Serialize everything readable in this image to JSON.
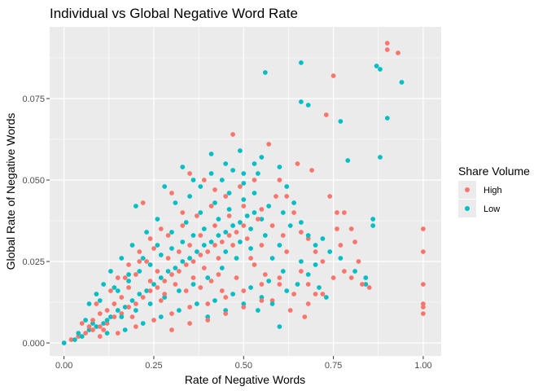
{
  "chart_data": {
    "type": "scatter",
    "title": "Individual vs Global Negative Word Rate",
    "xlabel": "Rate of Negative Words",
    "ylabel": "Global Rate of Negative Words",
    "xlim": [
      -0.04,
      1.05
    ],
    "ylim": [
      -0.004,
      0.097
    ],
    "x_ticks": [
      {
        "value": 0.0,
        "label": "0.00"
      },
      {
        "value": 0.25,
        "label": "0.25"
      },
      {
        "value": 0.5,
        "label": "0.50"
      },
      {
        "value": 0.75,
        "label": "0.75"
      },
      {
        "value": 1.0,
        "label": "1.00"
      }
    ],
    "y_ticks": [
      {
        "value": 0.0,
        "label": "0.000"
      },
      {
        "value": 0.025,
        "label": "0.025"
      },
      {
        "value": 0.05,
        "label": "0.050"
      },
      {
        "value": 0.075,
        "label": "0.075"
      }
    ],
    "grid": true,
    "panel_background": "#ebebeb",
    "legend": {
      "title": "Share Volume",
      "placement": "right"
    },
    "series": [
      {
        "name": "High",
        "color": "#F8766D",
        "points": [
          [
            0.0,
            0.0
          ],
          [
            0.02,
            0.001
          ],
          [
            0.04,
            0.002
          ],
          [
            0.06,
            0.003
          ],
          [
            0.08,
            0.004
          ],
          [
            0.1,
            0.005
          ],
          [
            0.12,
            0.006
          ],
          [
            0.14,
            0.008
          ],
          [
            0.16,
            0.009
          ],
          [
            0.18,
            0.011
          ],
          [
            0.2,
            0.012
          ],
          [
            0.22,
            0.014
          ],
          [
            0.24,
            0.016
          ],
          [
            0.26,
            0.017
          ],
          [
            0.28,
            0.019
          ],
          [
            0.3,
            0.021
          ],
          [
            0.32,
            0.022
          ],
          [
            0.34,
            0.024
          ],
          [
            0.36,
            0.025
          ],
          [
            0.38,
            0.027
          ],
          [
            0.4,
            0.028
          ],
          [
            0.42,
            0.03
          ],
          [
            0.44,
            0.031
          ],
          [
            0.46,
            0.033
          ],
          [
            0.48,
            0.034
          ],
          [
            0.5,
            0.036
          ],
          [
            0.05,
            0.006
          ],
          [
            0.09,
            0.012
          ],
          [
            0.13,
            0.016
          ],
          [
            0.17,
            0.02
          ],
          [
            0.21,
            0.025
          ],
          [
            0.25,
            0.029
          ],
          [
            0.29,
            0.033
          ],
          [
            0.33,
            0.036
          ],
          [
            0.37,
            0.039
          ],
          [
            0.41,
            0.042
          ],
          [
            0.45,
            0.045
          ],
          [
            0.49,
            0.048
          ],
          [
            0.53,
            0.05
          ],
          [
            0.1,
            0.002
          ],
          [
            0.15,
            0.003
          ],
          [
            0.2,
            0.005
          ],
          [
            0.25,
            0.007
          ],
          [
            0.3,
            0.009
          ],
          [
            0.35,
            0.011
          ],
          [
            0.4,
            0.012
          ],
          [
            0.45,
            0.014
          ],
          [
            0.5,
            0.016
          ],
          [
            0.55,
            0.018
          ],
          [
            0.6,
            0.02
          ],
          [
            0.22,
            0.043
          ],
          [
            0.3,
            0.046
          ],
          [
            0.35,
            0.052
          ],
          [
            0.47,
            0.064
          ],
          [
            0.57,
            0.061
          ],
          [
            0.6,
            0.05
          ],
          [
            0.62,
            0.045
          ],
          [
            0.64,
            0.04
          ],
          [
            0.66,
            0.034
          ],
          [
            0.68,
            0.032
          ],
          [
            0.7,
            0.028
          ],
          [
            0.72,
            0.025
          ],
          [
            0.66,
            0.022
          ],
          [
            0.68,
            0.018
          ],
          [
            0.7,
            0.015
          ],
          [
            0.63,
            0.01
          ],
          [
            0.67,
            0.008
          ],
          [
            0.58,
            0.013
          ],
          [
            0.55,
            0.03
          ],
          [
            0.52,
            0.026
          ],
          [
            0.43,
            0.021
          ],
          [
            0.38,
            0.017
          ],
          [
            0.27,
            0.013
          ],
          [
            0.19,
            0.008
          ],
          [
            0.11,
            0.004
          ],
          [
            0.65,
            0.055
          ],
          [
            0.69,
            0.053
          ],
          [
            0.73,
            0.07
          ],
          [
            0.75,
            0.082
          ],
          [
            0.76,
            0.035
          ],
          [
            0.77,
            0.03
          ],
          [
            0.78,
            0.022
          ],
          [
            0.8,
            0.02
          ],
          [
            0.81,
            0.031
          ],
          [
            0.8,
            0.035
          ],
          [
            0.76,
            0.04
          ],
          [
            0.74,
            0.045
          ],
          [
            0.78,
            0.04
          ],
          [
            0.82,
            0.025
          ],
          [
            0.85,
            0.017
          ],
          [
            0.9,
            0.092
          ],
          [
            0.9,
            0.09
          ],
          [
            0.93,
            0.089
          ],
          [
            1.0,
            0.035
          ],
          [
            1.0,
            0.028
          ],
          [
            1.0,
            0.018
          ],
          [
            1.0,
            0.012
          ],
          [
            1.0,
            0.011
          ],
          [
            1.0,
            0.009
          ],
          [
            0.83,
            0.018
          ],
          [
            0.75,
            0.02
          ],
          [
            0.72,
            0.015
          ],
          [
            0.68,
            0.012
          ],
          [
            0.64,
            0.015
          ],
          [
            0.6,
            0.018
          ],
          [
            0.56,
            0.021
          ],
          [
            0.53,
            0.024
          ],
          [
            0.48,
            0.02
          ],
          [
            0.44,
            0.016
          ],
          [
            0.41,
            0.019
          ],
          [
            0.39,
            0.023
          ],
          [
            0.36,
            0.02
          ],
          [
            0.34,
            0.016
          ],
          [
            0.31,
            0.018
          ],
          [
            0.28,
            0.015
          ],
          [
            0.26,
            0.022
          ],
          [
            0.24,
            0.019
          ],
          [
            0.23,
            0.025
          ],
          [
            0.2,
            0.021
          ],
          [
            0.18,
            0.017
          ],
          [
            0.16,
            0.014
          ],
          [
            0.14,
            0.012
          ],
          [
            0.12,
            0.01
          ],
          [
            0.1,
            0.009
          ],
          [
            0.08,
            0.007
          ],
          [
            0.07,
            0.005
          ],
          [
            0.5,
            0.042
          ],
          [
            0.54,
            0.038
          ],
          [
            0.58,
            0.036
          ],
          [
            0.61,
            0.033
          ],
          [
            0.46,
            0.039
          ],
          [
            0.42,
            0.036
          ],
          [
            0.38,
            0.033
          ],
          [
            0.35,
            0.03
          ],
          [
            0.32,
            0.028
          ],
          [
            0.29,
            0.026
          ],
          [
            0.43,
            0.026
          ],
          [
            0.47,
            0.03
          ],
          [
            0.51,
            0.032
          ],
          [
            0.55,
            0.041
          ],
          [
            0.59,
            0.045
          ],
          [
            0.62,
            0.028
          ],
          [
            0.4,
            0.007
          ],
          [
            0.45,
            0.009
          ],
          [
            0.5,
            0.011
          ],
          [
            0.55,
            0.013
          ],
          [
            0.35,
            0.006
          ],
          [
            0.3,
            0.004
          ],
          [
            0.42,
            0.047
          ],
          [
            0.39,
            0.05
          ],
          [
            0.33,
            0.04
          ],
          [
            0.27,
            0.035
          ],
          [
            0.24,
            0.032
          ],
          [
            0.21,
            0.028
          ],
          [
            0.18,
            0.024
          ],
          [
            0.15,
            0.02
          ]
        ]
      },
      {
        "name": "Low",
        "color": "#00BFC4",
        "points": [
          [
            0.0,
            0.0
          ],
          [
            0.03,
            0.001
          ],
          [
            0.05,
            0.002
          ],
          [
            0.07,
            0.004
          ],
          [
            0.09,
            0.005
          ],
          [
            0.11,
            0.006
          ],
          [
            0.13,
            0.008
          ],
          [
            0.15,
            0.01
          ],
          [
            0.17,
            0.011
          ],
          [
            0.19,
            0.013
          ],
          [
            0.21,
            0.015
          ],
          [
            0.23,
            0.016
          ],
          [
            0.25,
            0.018
          ],
          [
            0.27,
            0.02
          ],
          [
            0.29,
            0.022
          ],
          [
            0.31,
            0.023
          ],
          [
            0.33,
            0.025
          ],
          [
            0.35,
            0.026
          ],
          [
            0.37,
            0.028
          ],
          [
            0.39,
            0.03
          ],
          [
            0.41,
            0.031
          ],
          [
            0.43,
            0.033
          ],
          [
            0.45,
            0.034
          ],
          [
            0.47,
            0.036
          ],
          [
            0.49,
            0.037
          ],
          [
            0.51,
            0.039
          ],
          [
            0.53,
            0.04
          ],
          [
            0.06,
            0.007
          ],
          [
            0.1,
            0.013
          ],
          [
            0.14,
            0.017
          ],
          [
            0.18,
            0.021
          ],
          [
            0.22,
            0.026
          ],
          [
            0.26,
            0.03
          ],
          [
            0.3,
            0.034
          ],
          [
            0.34,
            0.037
          ],
          [
            0.38,
            0.04
          ],
          [
            0.42,
            0.043
          ],
          [
            0.46,
            0.046
          ],
          [
            0.5,
            0.049
          ],
          [
            0.54,
            0.052
          ],
          [
            0.12,
            0.003
          ],
          [
            0.17,
            0.004
          ],
          [
            0.22,
            0.006
          ],
          [
            0.27,
            0.008
          ],
          [
            0.32,
            0.01
          ],
          [
            0.37,
            0.012
          ],
          [
            0.42,
            0.013
          ],
          [
            0.47,
            0.015
          ],
          [
            0.52,
            0.017
          ],
          [
            0.57,
            0.019
          ],
          [
            0.2,
            0.042
          ],
          [
            0.28,
            0.048
          ],
          [
            0.33,
            0.054
          ],
          [
            0.41,
            0.058
          ],
          [
            0.45,
            0.055
          ],
          [
            0.49,
            0.059
          ],
          [
            0.55,
            0.057
          ],
          [
            0.6,
            0.054
          ],
          [
            0.62,
            0.048
          ],
          [
            0.64,
            0.043
          ],
          [
            0.66,
            0.037
          ],
          [
            0.68,
            0.033
          ],
          [
            0.7,
            0.03
          ],
          [
            0.56,
            0.083
          ],
          [
            0.66,
            0.086
          ],
          [
            0.66,
            0.074
          ],
          [
            0.68,
            0.073
          ],
          [
            0.77,
            0.068
          ],
          [
            0.79,
            0.056
          ],
          [
            0.87,
            0.085
          ],
          [
            0.88,
            0.084
          ],
          [
            0.94,
            0.08
          ],
          [
            0.9,
            0.069
          ],
          [
            0.88,
            0.057
          ],
          [
            0.86,
            0.038
          ],
          [
            0.86,
            0.036
          ],
          [
            0.84,
            0.02
          ],
          [
            0.84,
            0.018
          ],
          [
            0.81,
            0.022
          ],
          [
            0.77,
            0.026
          ],
          [
            0.74,
            0.028
          ],
          [
            0.72,
            0.032
          ],
          [
            0.7,
            0.024
          ],
          [
            0.66,
            0.025
          ],
          [
            0.62,
            0.016
          ],
          [
            0.58,
            0.012
          ],
          [
            0.54,
            0.01
          ],
          [
            0.6,
            0.03
          ],
          [
            0.56,
            0.033
          ],
          [
            0.52,
            0.029
          ],
          [
            0.48,
            0.026
          ],
          [
            0.44,
            0.023
          ],
          [
            0.4,
            0.02
          ],
          [
            0.36,
            0.018
          ],
          [
            0.32,
            0.016
          ],
          [
            0.28,
            0.014
          ],
          [
            0.24,
            0.012
          ],
          [
            0.2,
            0.01
          ],
          [
            0.16,
            0.008
          ],
          [
            0.12,
            0.007
          ],
          [
            0.08,
            0.006
          ],
          [
            0.04,
            0.003
          ],
          [
            0.5,
            0.044
          ],
          [
            0.53,
            0.046
          ],
          [
            0.57,
            0.042
          ],
          [
            0.61,
            0.04
          ],
          [
            0.63,
            0.036
          ],
          [
            0.46,
            0.041
          ],
          [
            0.43,
            0.038
          ],
          [
            0.39,
            0.035
          ],
          [
            0.36,
            0.033
          ],
          [
            0.33,
            0.031
          ],
          [
            0.3,
            0.029
          ],
          [
            0.27,
            0.027
          ],
          [
            0.24,
            0.024
          ],
          [
            0.21,
            0.022
          ],
          [
            0.18,
            0.019
          ],
          [
            0.15,
            0.016
          ],
          [
            0.45,
            0.028
          ],
          [
            0.49,
            0.031
          ],
          [
            0.52,
            0.035
          ],
          [
            0.55,
            0.038
          ],
          [
            0.58,
            0.026
          ],
          [
            0.61,
            0.022
          ],
          [
            0.4,
            0.008
          ],
          [
            0.45,
            0.01
          ],
          [
            0.5,
            0.012
          ],
          [
            0.55,
            0.014
          ],
          [
            0.6,
            0.005
          ],
          [
            0.65,
            0.018
          ],
          [
            0.68,
            0.021
          ],
          [
            0.71,
            0.017
          ],
          [
            0.73,
            0.014
          ],
          [
            0.35,
            0.045
          ],
          [
            0.38,
            0.048
          ],
          [
            0.31,
            0.043
          ],
          [
            0.26,
            0.038
          ],
          [
            0.23,
            0.034
          ],
          [
            0.19,
            0.03
          ],
          [
            0.16,
            0.026
          ],
          [
            0.13,
            0.022
          ],
          [
            0.11,
            0.018
          ],
          [
            0.09,
            0.015
          ],
          [
            0.07,
            0.012
          ],
          [
            0.5,
            0.052
          ],
          [
            0.53,
            0.055
          ],
          [
            0.47,
            0.053
          ],
          [
            0.44,
            0.05
          ],
          [
            0.41,
            0.052
          ],
          [
            0.36,
            0.05
          ]
        ]
      }
    ]
  }
}
